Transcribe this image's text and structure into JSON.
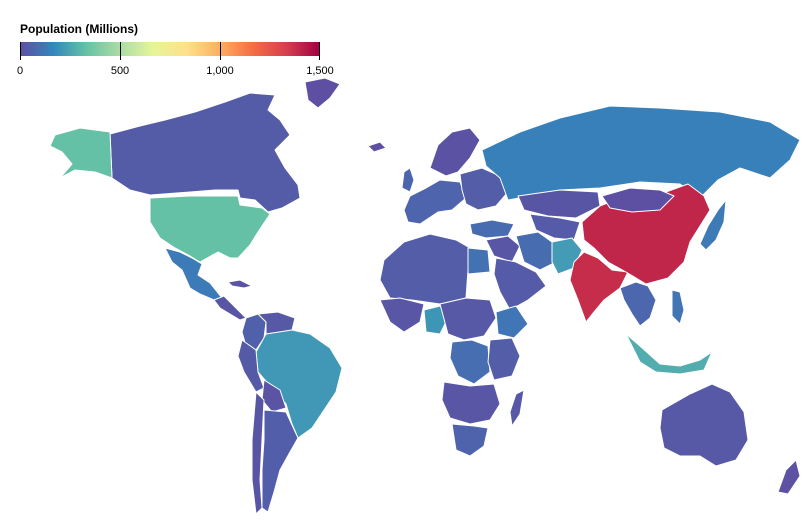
{
  "legend": {
    "title": "Population (Millions)",
    "min": 0,
    "max": 1500,
    "ticks": [
      "0",
      "500",
      "1,000",
      "1,500"
    ],
    "tick_values": [
      0,
      500,
      1000,
      1500
    ],
    "color_stops": [
      "#5e4fa2",
      "#3288bd",
      "#66c2a5",
      "#abdda4",
      "#e6f598",
      "#fee08b",
      "#fdae61",
      "#f46d43",
      "#d53e4f",
      "#9e0142"
    ]
  },
  "regions": [
    {
      "name": "canada",
      "value": 38
    },
    {
      "name": "usa",
      "value": 330
    },
    {
      "name": "alaska",
      "value": 330
    },
    {
      "name": "mexico",
      "value": 128
    },
    {
      "name": "central-america",
      "value": 18
    },
    {
      "name": "cuba",
      "value": 11
    },
    {
      "name": "greenland",
      "value": 0
    },
    {
      "name": "colombia",
      "value": 50
    },
    {
      "name": "venezuela",
      "value": 28
    },
    {
      "name": "peru",
      "value": 33
    },
    {
      "name": "bolivia",
      "value": 12
    },
    {
      "name": "brazil",
      "value": 212
    },
    {
      "name": "chile",
      "value": 19
    },
    {
      "name": "argentina",
      "value": 45
    },
    {
      "name": "iceland",
      "value": 0.4
    },
    {
      "name": "uk",
      "value": 67
    },
    {
      "name": "scandinavia",
      "value": 10
    },
    {
      "name": "western-europe",
      "value": 60
    },
    {
      "name": "eastern-europe",
      "value": 40
    },
    {
      "name": "turkey",
      "value": 84
    },
    {
      "name": "russia",
      "value": 144
    },
    {
      "name": "kazakhstan",
      "value": 19
    },
    {
      "name": "central-asia",
      "value": 35
    },
    {
      "name": "iran",
      "value": 84
    },
    {
      "name": "pakistan",
      "value": 220
    },
    {
      "name": "india",
      "value": 1380
    },
    {
      "name": "china",
      "value": 1400
    },
    {
      "name": "mongolia",
      "value": 3
    },
    {
      "name": "japan",
      "value": 126
    },
    {
      "name": "southeast-asia",
      "value": 70
    },
    {
      "name": "indonesia",
      "value": 273
    },
    {
      "name": "philippines",
      "value": 110
    },
    {
      "name": "australia",
      "value": 25
    },
    {
      "name": "new-zealand",
      "value": 5
    },
    {
      "name": "north-africa",
      "value": 40
    },
    {
      "name": "egypt",
      "value": 102
    },
    {
      "name": "west-africa",
      "value": 20
    },
    {
      "name": "nigeria",
      "value": 206
    },
    {
      "name": "central-africa",
      "value": 25
    },
    {
      "name": "drc",
      "value": 90
    },
    {
      "name": "ethiopia",
      "value": 115
    },
    {
      "name": "east-africa",
      "value": 40
    },
    {
      "name": "southern-africa",
      "value": 20
    },
    {
      "name": "south-africa",
      "value": 59
    },
    {
      "name": "madagascar",
      "value": 28
    },
    {
      "name": "arabia",
      "value": 35
    },
    {
      "name": "middle-east",
      "value": 20
    }
  ]
}
